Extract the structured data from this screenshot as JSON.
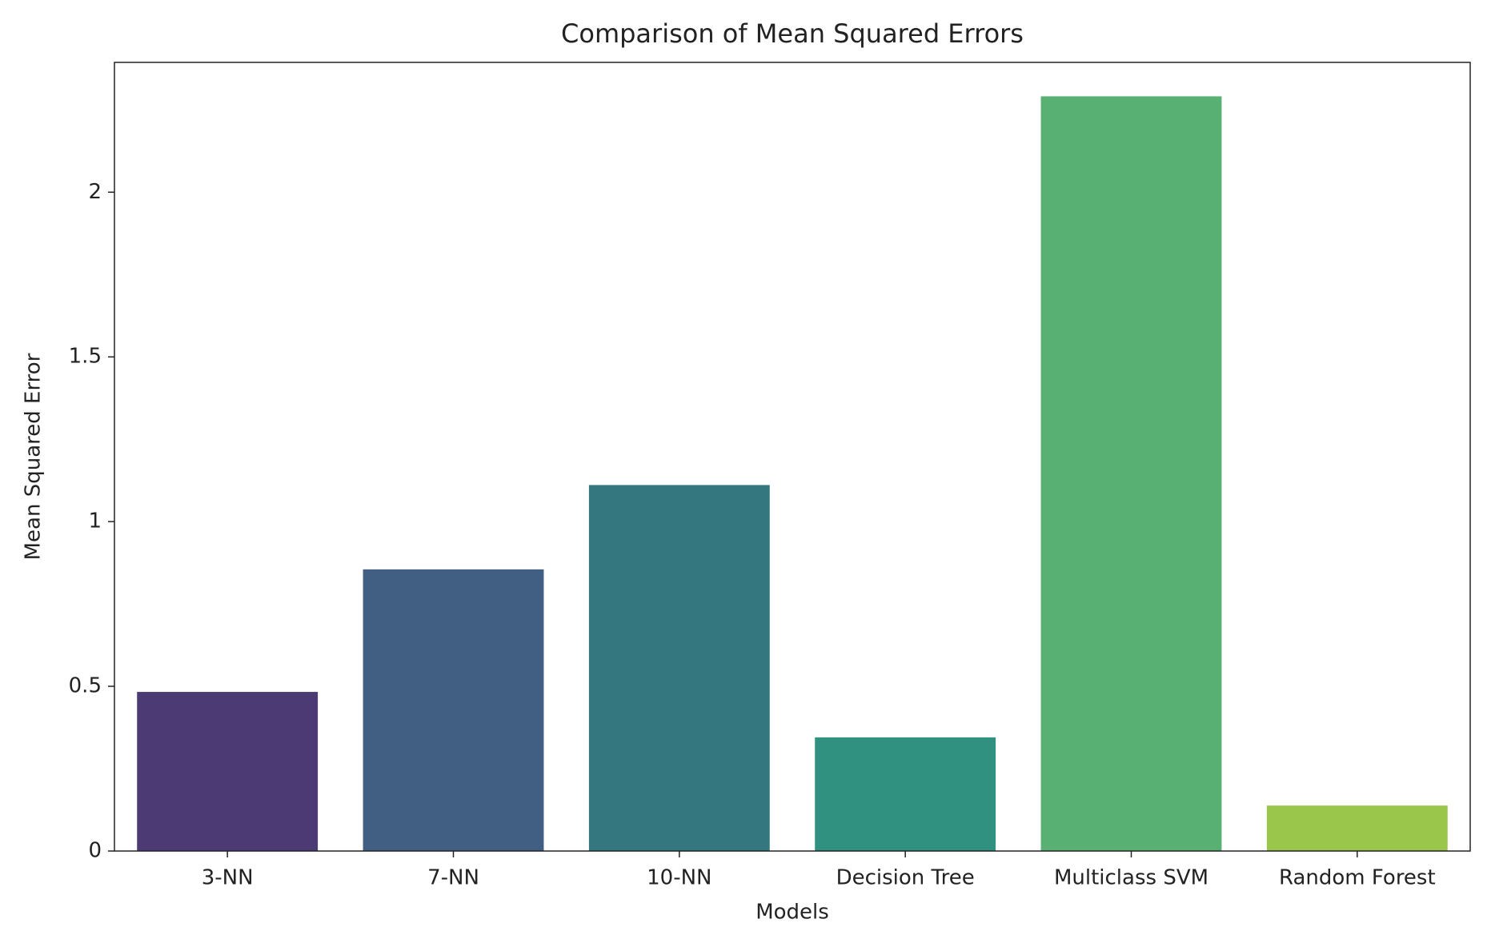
{
  "chart_data": {
    "type": "bar",
    "title": "Comparison of Mean Squared Errors",
    "x_label": "Models",
    "y_label": "Mean Squared Error",
    "categories": [
      "3-NN",
      "7-NN",
      "10-NN",
      "Decision Tree",
      "Multiclass SVM",
      "Random Forest"
    ],
    "values": [
      0.483,
      0.855,
      1.111,
      0.345,
      2.291,
      0.138
    ],
    "colors": [
      "#4b3a73",
      "#415e83",
      "#35777f",
      "#309180",
      "#59b073",
      "#9bc64c"
    ],
    "ylim": [
      0,
      2.394
    ],
    "yticks": [
      0.0,
      0.5,
      1.0,
      1.5,
      2.0
    ],
    "grid": false
  }
}
